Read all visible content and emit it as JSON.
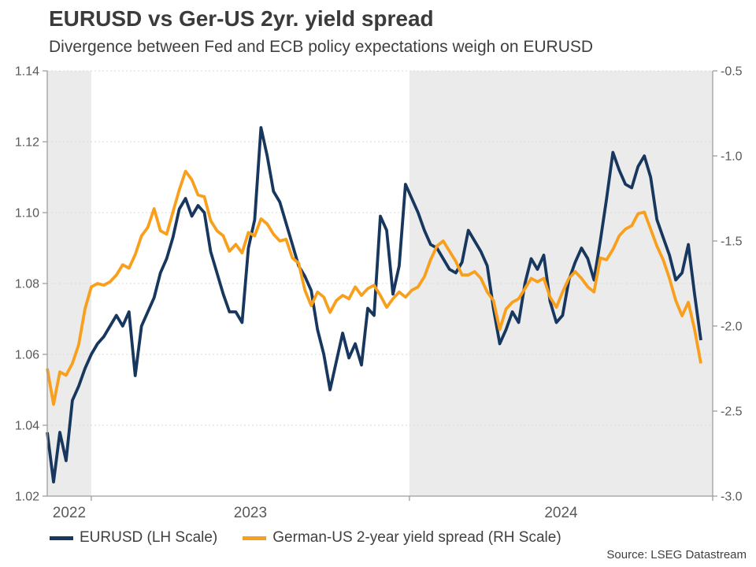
{
  "header": {
    "title": "EURUSD vs Ger-US 2yr. yield spread",
    "subtitle": "Divergence between Fed and ECB policy expectations weigh on EURUSD"
  },
  "legend": {
    "items": [
      {
        "label": "EURUSD (LH Scale)",
        "color": "#17375e"
      },
      {
        "label": "German-US 2-year yield spread (RH Scale)",
        "color": "#f8a01d"
      }
    ]
  },
  "footer": {
    "source": "Source: LSEG Datastream"
  },
  "chart_data": {
    "type": "line",
    "title": "EURUSD vs Ger-US 2yr. yield spread",
    "subtitle": "Divergence between Fed and ECB policy expectations weigh on EURUSD",
    "x_axis": {
      "unit": "decimal-year",
      "range": [
        2022.8617,
        2024.9531
      ],
      "year_boundaries": [
        2023,
        2024
      ],
      "year_labels": [
        "2022",
        "2023",
        "2024"
      ],
      "shaded_year_bands": [
        [
          2022.8617,
          2023
        ],
        [
          2024,
          2024.9531
        ]
      ]
    },
    "left_axis": {
      "series": "EURUSD",
      "range": [
        1.02,
        1.14
      ],
      "ticks": [
        1.02,
        1.04,
        1.06,
        1.08,
        1.1,
        1.12,
        1.14
      ],
      "tick_labels": [
        "1.02",
        "1.04",
        "1.06",
        "1.08",
        "1.10",
        "1.12",
        "1.14"
      ]
    },
    "right_axis": {
      "series": "German-US 2-year yield spread",
      "range": [
        -3.0,
        -0.5
      ],
      "ticks": [
        -3.0,
        -2.5,
        -2.0,
        -1.5,
        -1.0,
        -0.5
      ],
      "tick_labels": [
        "-3.0",
        "-2.5",
        "-2.0",
        "-1.5",
        "-1.0",
        "-0.5"
      ]
    },
    "sampling": {
      "t_start": 2022.8617,
      "t_step": 0.0197531
    },
    "series": [
      {
        "id": "eurusd",
        "name": "EURUSD (LH Scale)",
        "axis": "left",
        "color": "#17375e",
        "values": [
          1.038,
          1.024,
          1.038,
          1.03,
          1.047,
          1.051,
          1.056,
          1.06,
          1.063,
          1.065,
          1.068,
          1.071,
          1.068,
          1.072,
          1.054,
          1.068,
          1.072,
          1.076,
          1.083,
          1.087,
          1.093,
          1.101,
          1.104,
          1.099,
          1.102,
          1.1,
          1.089,
          1.083,
          1.077,
          1.072,
          1.072,
          1.069,
          1.09,
          1.098,
          1.124,
          1.116,
          1.106,
          1.103,
          1.097,
          1.091,
          1.085,
          1.082,
          1.078,
          1.067,
          1.06,
          1.05,
          1.058,
          1.066,
          1.059,
          1.063,
          1.057,
          1.073,
          1.071,
          1.099,
          1.095,
          1.077,
          1.085,
          1.108,
          1.104,
          1.1,
          1.095,
          1.091,
          1.09,
          1.087,
          1.084,
          1.083,
          1.086,
          1.095,
          1.092,
          1.089,
          1.085,
          1.073,
          1.063,
          1.067,
          1.072,
          1.069,
          1.08,
          1.087,
          1.084,
          1.088,
          1.075,
          1.069,
          1.071,
          1.081,
          1.086,
          1.09,
          1.087,
          1.081,
          1.092,
          1.104,
          1.117,
          1.112,
          1.108,
          1.107,
          1.113,
          1.116,
          1.11,
          1.098,
          1.093,
          1.088,
          1.081,
          1.083,
          1.091,
          1.077,
          1.064
        ]
      },
      {
        "id": "spread",
        "name": "German-US 2-year yield spread (RH Scale)",
        "axis": "right",
        "color": "#f8a01d",
        "values": [
          -2.25,
          -2.46,
          -2.27,
          -2.29,
          -2.22,
          -2.11,
          -1.9,
          -1.77,
          -1.75,
          -1.76,
          -1.74,
          -1.7,
          -1.64,
          -1.66,
          -1.58,
          -1.47,
          -1.42,
          -1.31,
          -1.44,
          -1.46,
          -1.33,
          -1.2,
          -1.09,
          -1.14,
          -1.23,
          -1.24,
          -1.38,
          -1.44,
          -1.47,
          -1.56,
          -1.52,
          -1.57,
          -1.45,
          -1.47,
          -1.37,
          -1.4,
          -1.46,
          -1.5,
          -1.49,
          -1.6,
          -1.63,
          -1.79,
          -1.88,
          -1.8,
          -1.83,
          -1.92,
          -1.85,
          -1.82,
          -1.84,
          -1.77,
          -1.82,
          -1.78,
          -1.76,
          -1.82,
          -1.89,
          -1.84,
          -1.8,
          -1.83,
          -1.79,
          -1.77,
          -1.71,
          -1.61,
          -1.53,
          -1.5,
          -1.56,
          -1.62,
          -1.7,
          -1.7,
          -1.68,
          -1.72,
          -1.8,
          -1.85,
          -2.02,
          -1.9,
          -1.86,
          -1.84,
          -1.78,
          -1.72,
          -1.74,
          -1.72,
          -1.83,
          -1.89,
          -1.8,
          -1.72,
          -1.68,
          -1.72,
          -1.77,
          -1.8,
          -1.6,
          -1.61,
          -1.55,
          -1.47,
          -1.43,
          -1.41,
          -1.34,
          -1.33,
          -1.43,
          -1.53,
          -1.61,
          -1.72,
          -1.85,
          -1.94,
          -1.86,
          -2.02,
          -2.22
        ]
      }
    ],
    "styling": {
      "plot_bg": "#ffffff",
      "band_bg": "#ebebeb",
      "grid_color": "#d9d9d9",
      "axis_color": "#9e9e9e",
      "tick_label_color": "#595959",
      "line_width": 3.8
    },
    "layout": {
      "grid": "dotted-horizontal",
      "legend_position": "bottom-left"
    }
  }
}
